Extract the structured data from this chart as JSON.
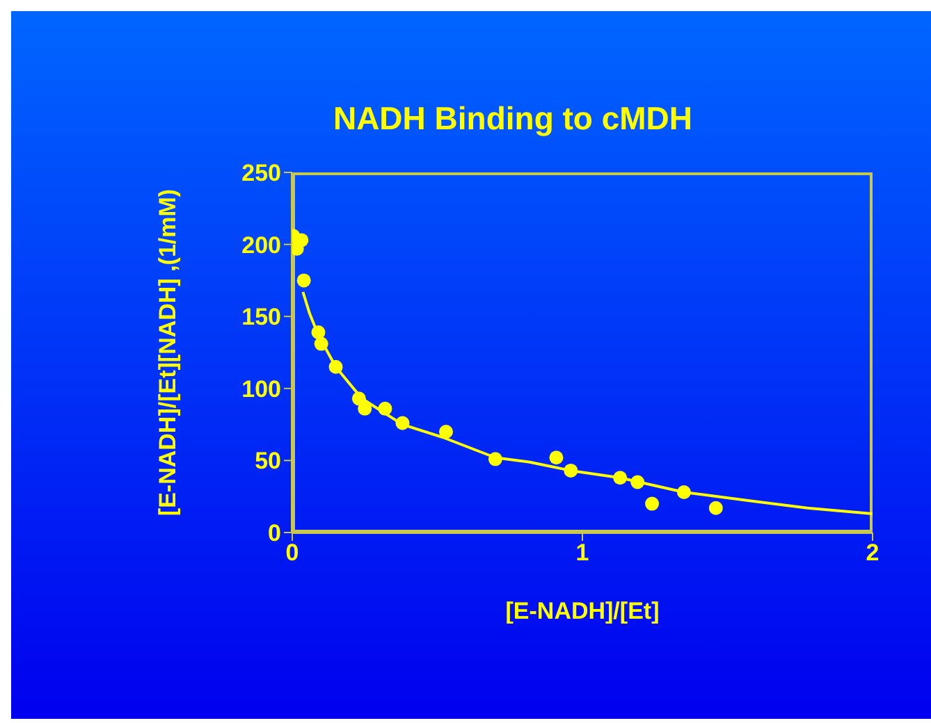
{
  "chart_data": {
    "type": "scatter",
    "title": "NADH Binding to cMDH",
    "xlabel": "[E-NADH]/[Et]",
    "ylabel": "[E-NADH]/[Et][NADH] ,(1/mM)",
    "series": [
      {
        "color": "#ffff00",
        "marker": "circle",
        "x": [
          0.003,
          0.032,
          0.016,
          0.04,
          0.09,
          0.1,
          0.15,
          0.23,
          0.25,
          0.32,
          0.38,
          0.53,
          0.7,
          0.91,
          0.96,
          1.13,
          1.19,
          1.24,
          1.35,
          1.46
        ],
        "values": [
          206,
          203,
          197,
          175,
          139,
          131,
          115,
          93,
          86,
          86,
          76,
          70,
          51,
          52,
          43,
          38,
          35,
          20,
          28,
          17
        ]
      },
      {
        "type": "line",
        "color": "#ffff00",
        "marker": "none",
        "x": [
          0.037,
          0.06,
          0.09,
          0.15,
          0.24,
          0.38,
          0.52,
          0.7,
          0.815,
          0.96,
          1.13,
          1.35,
          1.58,
          1.775,
          2
        ],
        "values": [
          167,
          152,
          137,
          115,
          93,
          75,
          66,
          52,
          49,
          43,
          38,
          28,
          22,
          17,
          13
        ]
      }
    ],
    "xlim": [
      0,
      2
    ],
    "xticks": [
      0,
      1,
      2
    ],
    "ylim": [
      0,
      250
    ],
    "yticks": [
      0,
      50,
      100,
      150,
      200,
      250
    ]
  }
}
